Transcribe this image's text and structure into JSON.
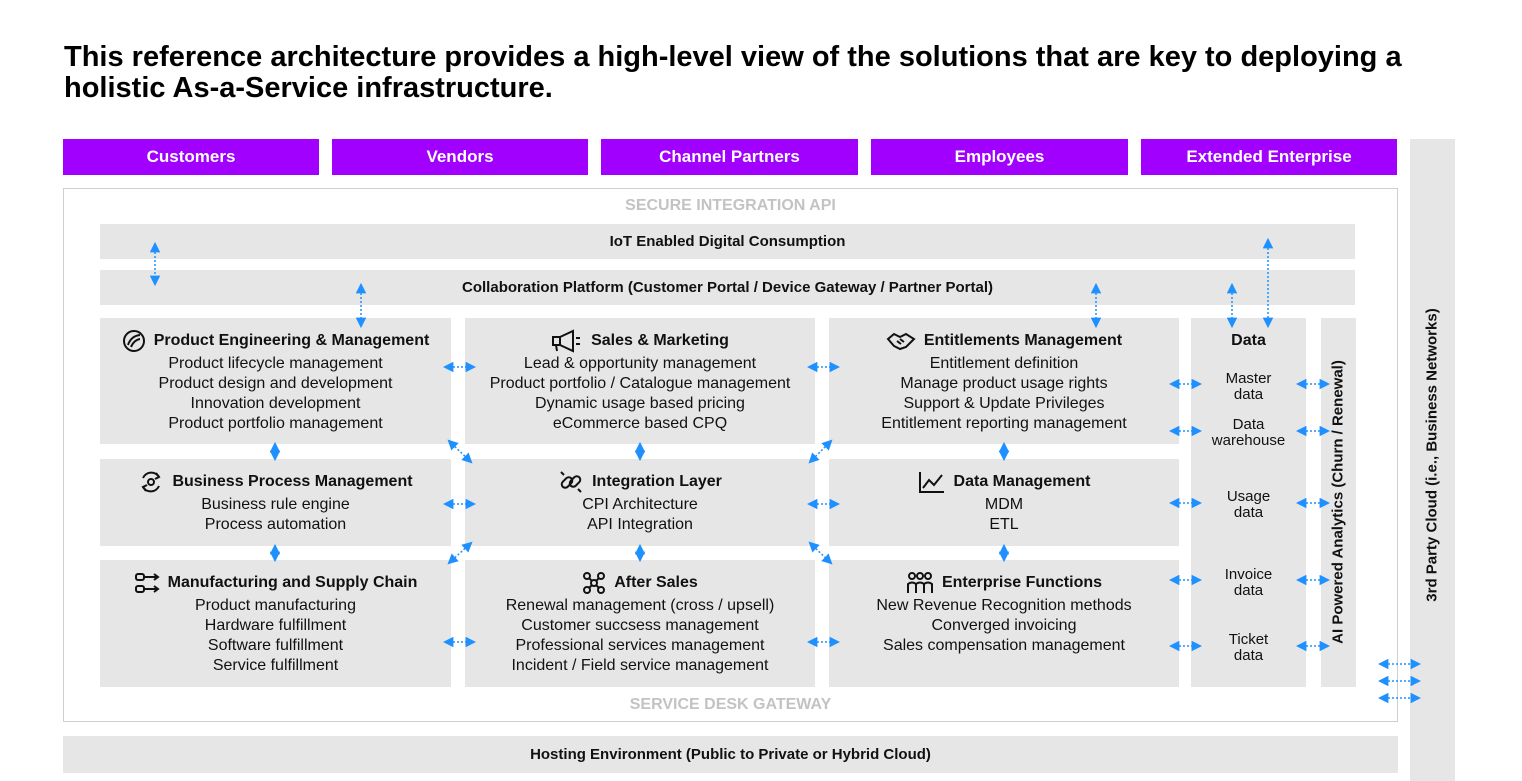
{
  "title": "This reference architecture provides a high-level view of the solutions that are key to deploying a holistic As-a-Service infrastructure.",
  "audiences": [
    "Customers",
    "Vendors",
    "Channel Partners",
    "Employees",
    "Extended Enterprise"
  ],
  "secure_api": "SECURE INTEGRATION API",
  "service_desk": "SERVICE DESK GATEWAY",
  "iot": "IoT Enabled Digital Consumption",
  "collab": "Collaboration Platform (Customer Portal / Device Gateway / Partner Portal)",
  "hosting": "Hosting Environment (Public to Private or Hybrid Cloud)",
  "cloud": "3rd Party Cloud (i.e., Business Networks)",
  "analytics": "AI Powered Analytics (Churn / Renewal)",
  "modules": {
    "product_engineering": {
      "title": "Product Engineering & Management",
      "icon": "engineering-icon",
      "items": [
        "Product lifecycle management",
        "Product design and development",
        "Innovation development",
        "Product portfolio management"
      ]
    },
    "sales_marketing": {
      "title": "Sales & Marketing",
      "icon": "megaphone-icon",
      "items": [
        "Lead & opportunity management",
        "Product portfolio / Catalogue management",
        "Dynamic usage based pricing",
        "eCommerce based CPQ"
      ]
    },
    "entitlements": {
      "title": "Entitlements Management",
      "icon": "handshake-icon",
      "items": [
        "Entitlement definition",
        "Manage product usage rights",
        "Support & Update Privileges",
        "Entitlement reporting management"
      ]
    },
    "bpm": {
      "title": "Business Process Management",
      "icon": "process-cycle-icon",
      "items": [
        "Business rule engine",
        "Process automation"
      ]
    },
    "integration": {
      "title": "Integration Layer",
      "icon": "link-icon",
      "items": [
        "CPI Architecture",
        "API Integration"
      ]
    },
    "data_management": {
      "title": "Data Management",
      "icon": "line-chart-icon",
      "items": [
        "MDM",
        "ETL"
      ]
    },
    "manufacturing": {
      "title": "Manufacturing and Supply Chain",
      "icon": "supply-chain-icon",
      "items": [
        "Product manufacturing",
        "Hardware fulfillment",
        "Software fulfillment",
        "Service fulfillment"
      ]
    },
    "after_sales": {
      "title": "After Sales",
      "icon": "network-nodes-icon",
      "items": [
        "Renewal management (cross / upsell)",
        "Customer succsess management",
        "Professional services management",
        "Incident / Field service management"
      ]
    },
    "enterprise": {
      "title": "Enterprise Functions",
      "icon": "people-group-icon",
      "items": [
        "New Revenue Recognition methods",
        "Converged invoicing",
        "Sales compensation management"
      ]
    }
  },
  "data": {
    "title": "Data",
    "items": [
      [
        "Master",
        "data"
      ],
      [
        "Data",
        "warehouse"
      ],
      [
        "Usage",
        "data"
      ],
      [
        "Invoice",
        "data"
      ],
      [
        "Ticket",
        "data"
      ]
    ]
  },
  "colors": {
    "accent": "#a100ff",
    "box": "#e6e6e6",
    "arrow": "#1e90ff",
    "muted_label": "#c3c3c3"
  }
}
